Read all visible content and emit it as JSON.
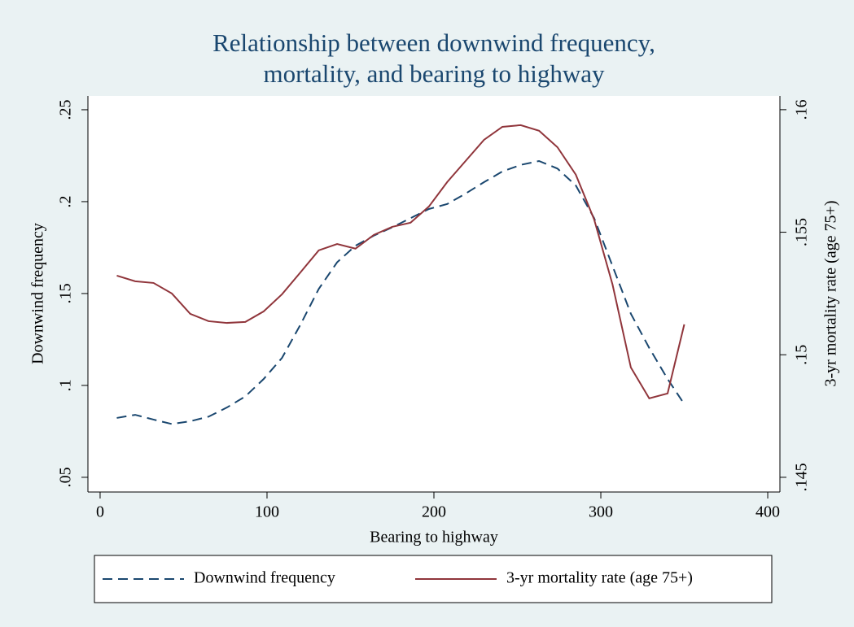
{
  "chart_data": {
    "type": "line",
    "title": [
      "Relationship between downwind frequency,",
      "mortality, and bearing to highway"
    ],
    "xlabel": "Bearing to highway",
    "ylabel": "Downwind frequency",
    "y2label": "3-yr mortality rate (age 75+)",
    "x": [
      10,
      21,
      32,
      43,
      54,
      65,
      76,
      87,
      98,
      109,
      120,
      131,
      142,
      153,
      164,
      175,
      186,
      197,
      208,
      219,
      230,
      241,
      252,
      263,
      274,
      285,
      296,
      307,
      318,
      329,
      340,
      350
    ],
    "series": [
      {
        "name": "Downwind frequency",
        "color": "#1a476f",
        "dash": true,
        "axis": "y",
        "values": [
          0.0823,
          0.084,
          0.0814,
          0.079,
          0.0805,
          0.083,
          0.088,
          0.094,
          0.1035,
          0.115,
          0.133,
          0.1525,
          0.167,
          0.176,
          0.1815,
          0.186,
          0.191,
          0.196,
          0.1987,
          0.2044,
          0.2106,
          0.2164,
          0.22,
          0.2221,
          0.218,
          0.2088,
          0.191,
          0.165,
          0.139,
          0.1204,
          0.1035,
          0.0898
        ]
      },
      {
        "name": "3-yr mortality rate (age 75+)",
        "color": "#90353b",
        "dash": false,
        "axis": "y2",
        "values": [
          0.15323,
          0.153,
          0.15293,
          0.1525,
          0.15167,
          0.15137,
          0.1513,
          0.15134,
          0.15177,
          0.15247,
          0.15336,
          0.15426,
          0.15452,
          0.15433,
          0.15489,
          0.15522,
          0.15539,
          0.15605,
          0.15705,
          0.15791,
          0.15877,
          0.1593,
          0.15937,
          0.15914,
          0.15847,
          0.15735,
          0.15552,
          0.15287,
          0.14948,
          0.14822,
          0.14842,
          0.15124
        ]
      }
    ],
    "xlim": [
      -7.3,
      407.3
    ],
    "xticks": [
      0,
      100,
      200,
      300,
      400
    ],
    "ylim": [
      0.042,
      0.2575
    ],
    "yticks": [
      {
        "value": 0.05,
        "label": ".05"
      },
      {
        "value": 0.1,
        "label": ".1"
      },
      {
        "value": 0.15,
        "label": ".15"
      },
      {
        "value": 0.2,
        "label": ".2"
      },
      {
        "value": 0.25,
        "label": ".25"
      }
    ],
    "y2lim": [
      0.1444,
      0.16056
    ],
    "y2ticks": [
      {
        "value": 0.145,
        "label": ".145"
      },
      {
        "value": 0.15,
        "label": ".15"
      },
      {
        "value": 0.155,
        "label": ".155"
      },
      {
        "value": 0.16,
        "label": ".16"
      }
    ],
    "grid": false
  }
}
